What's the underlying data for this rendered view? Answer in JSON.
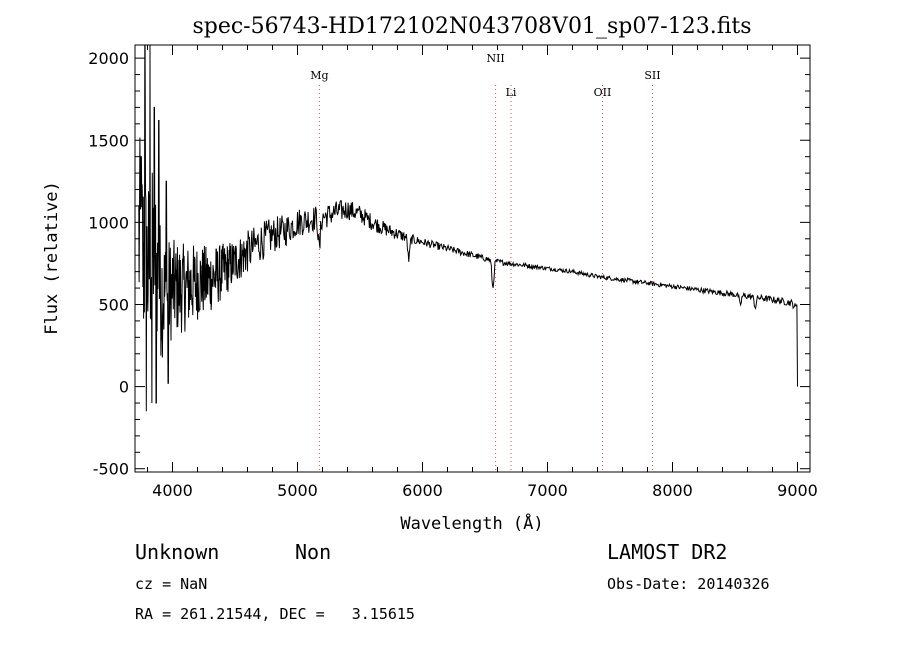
{
  "chart_data": {
    "type": "line",
    "title": "spec-56743-HD172102N043708V01_sp07-123.fits",
    "xlabel": "Wavelength (Å)",
    "ylabel": "Flux (relative)",
    "xlim": [
      3700,
      9100
    ],
    "ylim": [
      -520,
      2080
    ],
    "xticks": [
      4000,
      5000,
      6000,
      7000,
      8000,
      9000
    ],
    "yticks": [
      -500,
      0,
      500,
      1000,
      1500,
      2000
    ],
    "grid": false,
    "legend": "none",
    "line_color": "#000000",
    "line_markers": [
      {
        "label": "Mg",
        "x": 5175
      },
      {
        "label": "NII",
        "x": 6585
      },
      {
        "label": "Li",
        "x": 6708
      },
      {
        "label": "OII",
        "x": 7440
      },
      {
        "label": "SII",
        "x": 7840
      }
    ],
    "spectrum_anchor": {
      "x": [
        3730,
        3800,
        3850,
        3900,
        3950,
        4000,
        4100,
        4200,
        4300,
        4400,
        4500,
        4600,
        4700,
        4800,
        4900,
        5000,
        5100,
        5200,
        5300,
        5400,
        5500,
        5600,
        5700,
        5800,
        5900,
        6000,
        6100,
        6200,
        6300,
        6400,
        6500,
        6600,
        6700,
        6800,
        6900,
        7000,
        7200,
        7400,
        7600,
        7800,
        8000,
        8200,
        8400,
        8600,
        8800,
        8950,
        8990,
        9000
      ],
      "y": [
        900,
        700,
        850,
        600,
        550,
        600,
        600,
        640,
        650,
        700,
        760,
        820,
        880,
        920,
        950,
        1000,
        1020,
        1030,
        1060,
        1080,
        1050,
        1000,
        960,
        930,
        900,
        880,
        860,
        840,
        820,
        800,
        780,
        760,
        750,
        740,
        730,
        720,
        700,
        670,
        650,
        630,
        610,
        590,
        570,
        550,
        530,
        510,
        480,
        0
      ]
    },
    "absorption": [
      {
        "x": 5175,
        "depth": 200
      },
      {
        "x": 5890,
        "depth": 130
      },
      {
        "x": 6563,
        "depth": 170
      },
      {
        "x": 8542,
        "depth": 60
      },
      {
        "x": 8662,
        "depth": 60
      }
    ],
    "noise": [
      {
        "x": 3700,
        "amp": 700
      },
      {
        "x": 4000,
        "amp": 300
      },
      {
        "x": 4500,
        "amp": 140
      },
      {
        "x": 5000,
        "amp": 90
      },
      {
        "x": 5600,
        "amp": 50
      },
      {
        "x": 6000,
        "amp": 25
      },
      {
        "x": 7000,
        "amp": 12
      },
      {
        "x": 8000,
        "amp": 14
      },
      {
        "x": 9000,
        "amp": 22
      }
    ],
    "spikes": [
      {
        "x": 3750,
        "y": 1400
      },
      {
        "x": 3780,
        "y": 2080
      },
      {
        "x": 3790,
        "y": -150
      },
      {
        "x": 3820,
        "y": 2080
      },
      {
        "x": 3835,
        "y": -100
      },
      {
        "x": 3855,
        "y": 1700
      },
      {
        "x": 3870,
        "y": -100
      },
      {
        "x": 3890,
        "y": 1620
      },
      {
        "x": 3950,
        "y": 1250
      },
      {
        "x": 3965,
        "y": 20
      }
    ]
  },
  "info": {
    "object_class": "Unknown",
    "object_subclass": "Non",
    "survey": "LAMOST DR2",
    "redshift": "cz = NaN",
    "obs_date": "Obs-Date: 20140326",
    "coords": "RA = 261.21544, DEC =   3.15615"
  }
}
